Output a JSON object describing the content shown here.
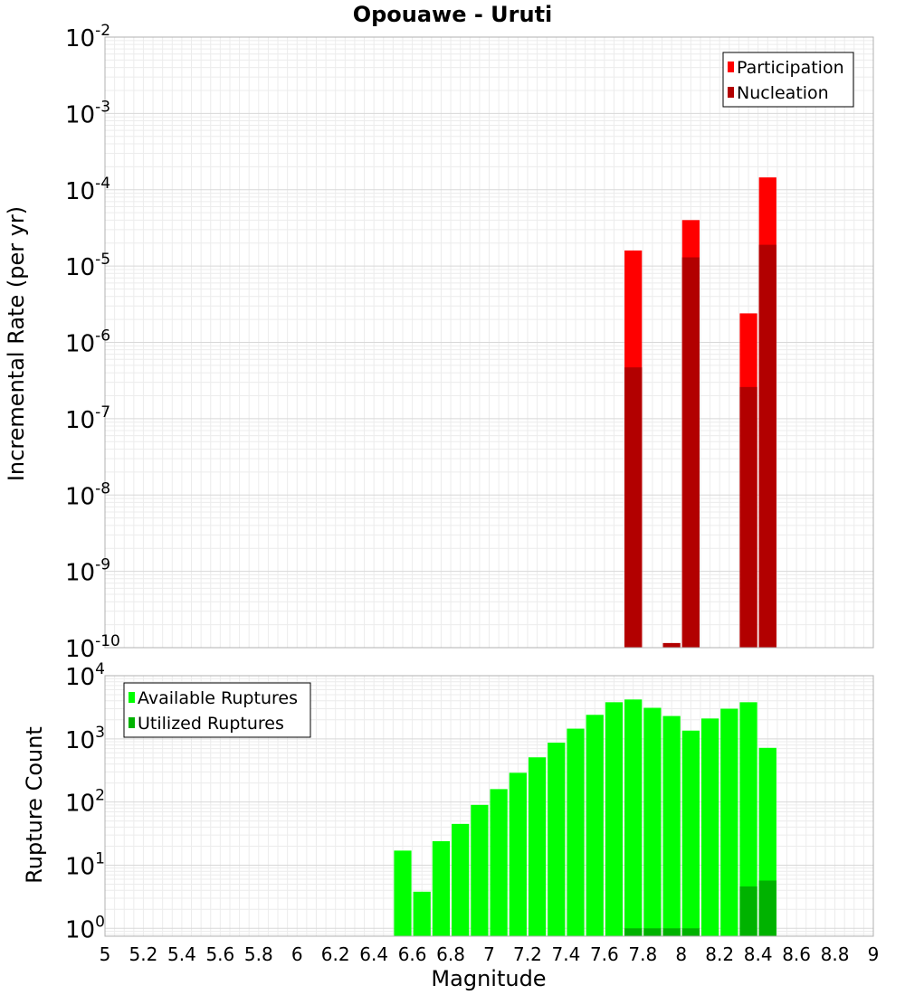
{
  "chart_data": [
    {
      "type": "bar",
      "title": "Opouawe - Uruti",
      "ylabel": "Incremental Rate (per yr)",
      "xlabel": "",
      "yscale": "log",
      "ylim": [
        1e-10,
        0.01
      ],
      "xlim": [
        5,
        9
      ],
      "bin_width": 0.1,
      "grid": true,
      "legend_position": "top-right",
      "y_tick_exponents": [
        "-10",
        "-9",
        "-8",
        "-7",
        "-6",
        "-5",
        "-4",
        "-3",
        "-2"
      ],
      "series": [
        {
          "name": "Participation",
          "color": "#ff0000",
          "x": [
            7.75,
            8.05,
            8.35,
            8.45
          ],
          "values": [
            1.6e-05,
            4e-05,
            2.4e-06,
            0.000145
          ]
        },
        {
          "name": "Nucleation",
          "color": "#b20000",
          "x": [
            7.75,
            7.95,
            8.05,
            8.35,
            8.45
          ],
          "values": [
            4.7e-07,
            1.15e-10,
            1.3e-05,
            2.6e-07,
            1.9e-05
          ]
        }
      ]
    },
    {
      "type": "bar",
      "title": "",
      "ylabel": "Rupture Count",
      "xlabel": "Magnitude",
      "yscale": "log",
      "ylim": [
        0.75,
        10000
      ],
      "xlim": [
        5,
        9
      ],
      "bin_width": 0.1,
      "grid": true,
      "legend_position": "top-left",
      "y_tick_exponents": [
        "0",
        "1",
        "2",
        "3",
        "4"
      ],
      "x_ticks": [
        "5",
        "5.2",
        "5.4",
        "5.6",
        "5.8",
        "6",
        "6.2",
        "6.4",
        "6.6",
        "6.8",
        "7",
        "7.2",
        "7.4",
        "7.6",
        "7.8",
        "8",
        "8.2",
        "8.4",
        "8.6",
        "8.8",
        "9"
      ],
      "series": [
        {
          "name": "Available Ruptures",
          "color": "#00ff00",
          "x": [
            6.55,
            6.65,
            6.75,
            6.85,
            6.95,
            7.05,
            7.15,
            7.25,
            7.35,
            7.45,
            7.55,
            7.65,
            7.75,
            7.85,
            7.95,
            8.05,
            8.15,
            8.25,
            8.35,
            8.45
          ],
          "values": [
            17,
            3.8,
            24,
            45,
            90,
            160,
            290,
            510,
            870,
            1450,
            2400,
            3800,
            4200,
            3100,
            2300,
            1350,
            2100,
            3000,
            3800,
            720
          ]
        },
        {
          "name": "Utilized Ruptures",
          "color": "#00b200",
          "x": [
            7.75,
            7.85,
            7.95,
            8.05,
            8.35,
            8.45
          ],
          "values": [
            1,
            1,
            1,
            1,
            4.6,
            5.7
          ]
        }
      ]
    }
  ]
}
